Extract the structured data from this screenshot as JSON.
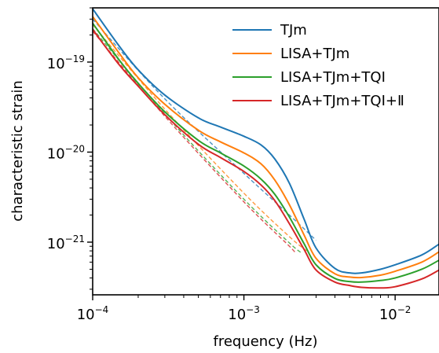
{
  "chart_data": {
    "type": "line",
    "title": "",
    "xlabel": "frequency (Hz)",
    "ylabel": "characteristic strain",
    "xscale": "log",
    "yscale": "log",
    "xlim": [
      0.0001,
      0.0195
    ],
    "ylim": [
      2.6e-22,
      4e-19
    ],
    "grid": false,
    "legend_position": "top-right",
    "xticks": [
      {
        "value": 0.0001,
        "base": "10",
        "exp": "−4"
      },
      {
        "value": 0.001,
        "base": "10",
        "exp": "−3"
      },
      {
        "value": 0.01,
        "base": "10",
        "exp": "−2"
      }
    ],
    "yticks": [
      {
        "value": 1e-21,
        "base": "10",
        "exp": "−21"
      },
      {
        "value": 1e-20,
        "base": "10",
        "exp": "−20"
      },
      {
        "value": 1e-19,
        "base": "10",
        "exp": "−19"
      }
    ],
    "series": [
      {
        "name": "TJm",
        "color": "#1f77b4",
        "style": "solid",
        "x": [
          0.0001,
          0.00015,
          0.0002,
          0.0003,
          0.0005,
          0.0007,
          0.001,
          0.0013,
          0.0016,
          0.002,
          0.0025,
          0.003,
          0.004,
          0.005,
          0.006,
          0.008,
          0.01,
          0.015,
          0.0195
        ],
        "y": [
          3.9e-19,
          1.5e-19,
          8.2e-20,
          4.3e-20,
          2.4e-20,
          1.9e-20,
          1.5e-20,
          1.2e-20,
          8.4e-21,
          4.5e-21,
          1.8e-21,
          8.6e-22,
          5.1e-22,
          4.55e-22,
          4.55e-22,
          5e-22,
          5.6e-22,
          7.2e-22,
          9.5e-22
        ]
      },
      {
        "name": "LISA+TJm",
        "color": "#ff7f0e",
        "style": "solid",
        "x": [
          0.0001,
          0.00015,
          0.0002,
          0.0003,
          0.0005,
          0.0007,
          0.001,
          0.0013,
          0.0016,
          0.002,
          0.0025,
          0.003,
          0.004,
          0.005,
          0.006,
          0.008,
          0.01,
          0.015,
          0.0195
        ],
        "y": [
          3.2e-19,
          1.25e-19,
          6.7e-20,
          3.4e-20,
          1.75e-20,
          1.3e-20,
          9.8e-21,
          7.4e-21,
          4.9e-21,
          2.6e-21,
          1.2e-21,
          6.6e-22,
          4.45e-22,
          4.1e-22,
          4.05e-22,
          4.3e-22,
          4.75e-22,
          6e-22,
          7.8e-22
        ]
      },
      {
        "name": "LISA+TJm+TQI",
        "color": "#2ca02c",
        "style": "solid",
        "x": [
          0.0001,
          0.00015,
          0.0002,
          0.0003,
          0.0005,
          0.0007,
          0.001,
          0.0013,
          0.0016,
          0.002,
          0.0025,
          0.003,
          0.004,
          0.005,
          0.006,
          0.008,
          0.01,
          0.015,
          0.0195
        ],
        "y": [
          2.7e-19,
          1.05e-19,
          5.8e-20,
          2.8e-20,
          1.35e-20,
          9.8e-21,
          7e-21,
          5e-21,
          3.4e-21,
          1.9e-21,
          9.6e-22,
          5.6e-22,
          3.95e-22,
          3.65e-22,
          3.6e-22,
          3.75e-22,
          4e-22,
          5e-22,
          6.3e-22
        ]
      },
      {
        "name": "LISA+TJm+TQI+Ⅱ",
        "color": "#d62728",
        "style": "solid",
        "x": [
          0.0001,
          0.00015,
          0.0002,
          0.0003,
          0.0005,
          0.0007,
          0.001,
          0.0013,
          0.0016,
          0.002,
          0.0025,
          0.003,
          0.004,
          0.005,
          0.006,
          0.008,
          0.01,
          0.015,
          0.0195
        ],
        "y": [
          2.3e-19,
          9.3e-20,
          5.4e-20,
          2.6e-20,
          1.22e-20,
          8.7e-21,
          6.1e-21,
          4.3e-21,
          2.9e-21,
          1.6e-21,
          8.3e-22,
          4.9e-22,
          3.6e-22,
          3.3e-22,
          3.15e-22,
          3.1e-22,
          3.2e-22,
          3.9e-22,
          4.9e-22
        ]
      },
      {
        "color": "#1f77b4",
        "style": "dashed",
        "x": [
          0.0001,
          0.0003,
          0.001,
          0.002,
          0.003
        ],
        "y": [
          3e-19,
          3.9e-20,
          5.8e-21,
          2e-21,
          1.05e-21
        ]
      },
      {
        "color": "#ff7f0e",
        "style": "dashed",
        "x": [
          0.0001,
          0.0003,
          0.001,
          0.002,
          0.0026
        ],
        "y": [
          2.6e-19,
          3e-20,
          3.5e-21,
          1.15e-21,
          8e-22
        ]
      },
      {
        "color": "#2ca02c",
        "style": "dashed",
        "x": [
          0.0001,
          0.0003,
          0.001,
          0.002,
          0.0024
        ],
        "y": [
          2.35e-19,
          2.65e-20,
          3e-21,
          9.8e-22,
          7.6e-22
        ]
      },
      {
        "color": "#d62728",
        "style": "dashed",
        "x": [
          0.0001,
          0.0003,
          0.001,
          0.002,
          0.0022
        ],
        "y": [
          2.2e-19,
          2.5e-20,
          2.8e-21,
          9e-22,
          7.4e-22
        ]
      }
    ]
  }
}
